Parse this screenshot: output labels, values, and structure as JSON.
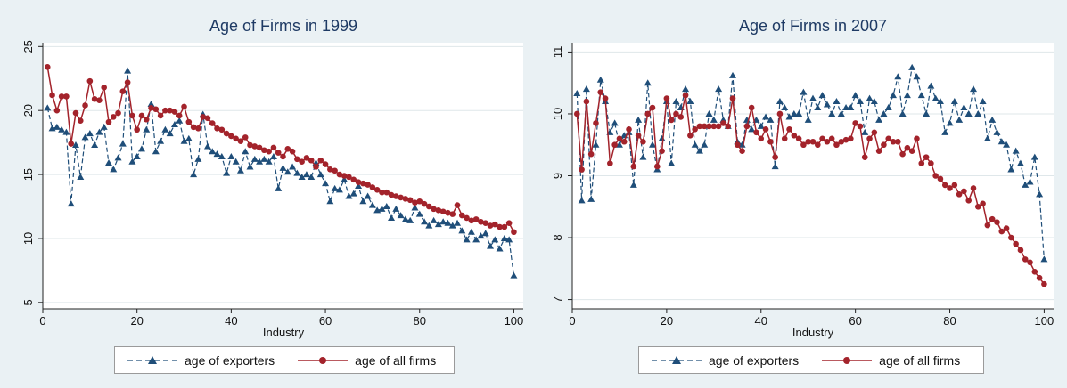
{
  "colors": {
    "background": "#eaf1f4",
    "plot_bg": "#ffffff",
    "grid": "#dfe7ea",
    "exporters": "#1f4e79",
    "all_firms": "#a3232b"
  },
  "chart_data": [
    {
      "type": "line",
      "title": "Age of Firms in 1999",
      "xlabel": "Industry",
      "ylabel": "",
      "xlim": [
        0,
        102
      ],
      "ylim": [
        4.5,
        25.3
      ],
      "xticks": [
        0,
        20,
        40,
        60,
        80,
        100
      ],
      "yticks": [
        5,
        10,
        15,
        20,
        25
      ],
      "grid": true,
      "legend_position": "bottom",
      "x": [
        1,
        2,
        3,
        4,
        5,
        6,
        7,
        8,
        9,
        10,
        11,
        12,
        13,
        14,
        15,
        16,
        17,
        18,
        19,
        20,
        21,
        22,
        23,
        24,
        25,
        26,
        27,
        28,
        29,
        30,
        31,
        32,
        33,
        34,
        35,
        36,
        37,
        38,
        39,
        40,
        41,
        42,
        43,
        44,
        45,
        46,
        47,
        48,
        49,
        50,
        51,
        52,
        53,
        54,
        55,
        56,
        57,
        58,
        59,
        60,
        61,
        62,
        63,
        64,
        65,
        66,
        67,
        68,
        69,
        70,
        71,
        72,
        73,
        74,
        75,
        76,
        77,
        78,
        79,
        80,
        81,
        82,
        83,
        84,
        85,
        86,
        87,
        88,
        89,
        90,
        91,
        92,
        93,
        94,
        95,
        96,
        97,
        98,
        99,
        100
      ],
      "series": [
        {
          "name": "age of exporters",
          "style": "dashed-triangle",
          "values": [
            20.2,
            18.6,
            18.7,
            18.5,
            18.3,
            12.7,
            17.3,
            14.8,
            17.9,
            18.2,
            17.3,
            18.3,
            18.7,
            15.9,
            15.4,
            16.3,
            17.4,
            23.1,
            16.0,
            16.4,
            17.0,
            18.5,
            20.5,
            16.8,
            17.6,
            18.5,
            18.2,
            18.9,
            19.2,
            17.6,
            17.8,
            15.0,
            16.2,
            19.7,
            17.2,
            16.8,
            16.6,
            16.4,
            15.1,
            16.4,
            16.0,
            15.3,
            16.8,
            15.6,
            16.2,
            16.0,
            16.2,
            16.0,
            16.4,
            13.9,
            15.5,
            15.2,
            15.6,
            15.1,
            14.8,
            15.0,
            14.8,
            15.9,
            15.0,
            14.3,
            12.9,
            13.9,
            13.8,
            14.6,
            13.3,
            13.5,
            14.1,
            12.9,
            13.3,
            12.6,
            12.2,
            12.3,
            12.5,
            11.6,
            12.3,
            11.8,
            11.5,
            11.4,
            12.4,
            11.9,
            11.3,
            11.0,
            11.4,
            11.1,
            11.3,
            11.2,
            11.0,
            11.2,
            10.6,
            9.9,
            10.5,
            9.9,
            10.2,
            10.4,
            9.4,
            9.9,
            9.2,
            10.0,
            9.9,
            7.1
          ]
        },
        {
          "name": "age of all firms",
          "style": "solid-circle",
          "values": [
            23.4,
            21.2,
            20.0,
            21.1,
            21.1,
            17.4,
            19.8,
            19.2,
            20.4,
            22.3,
            20.9,
            20.8,
            21.8,
            19.1,
            19.5,
            19.8,
            21.5,
            22.2,
            19.6,
            18.5,
            19.6,
            19.3,
            20.2,
            20.1,
            19.6,
            20.0,
            20.0,
            19.9,
            19.6,
            20.3,
            19.1,
            18.7,
            18.6,
            19.5,
            19.4,
            19.0,
            18.6,
            18.5,
            18.2,
            18.0,
            17.8,
            17.6,
            17.9,
            17.3,
            17.2,
            17.1,
            16.9,
            16.8,
            17.1,
            16.7,
            16.4,
            17.0,
            16.8,
            16.2,
            16.0,
            16.3,
            16.1,
            15.6,
            16.1,
            15.8,
            15.4,
            15.3,
            15.0,
            14.9,
            14.8,
            14.6,
            14.4,
            14.3,
            14.2,
            14.0,
            13.8,
            13.6,
            13.6,
            13.4,
            13.3,
            13.2,
            13.1,
            13.0,
            12.8,
            12.9,
            12.7,
            12.5,
            12.3,
            12.2,
            12.1,
            12.0,
            11.9,
            12.6,
            11.8,
            11.6,
            11.4,
            11.5,
            11.3,
            11.2,
            11.0,
            11.1,
            10.9,
            10.9,
            11.2,
            10.5
          ]
        }
      ]
    },
    {
      "type": "line",
      "title": "Age of Firms in 2007",
      "xlabel": "Industry",
      "ylabel": "",
      "xlim": [
        0,
        102
      ],
      "ylim": [
        6.85,
        11.15
      ],
      "xticks": [
        0,
        20,
        40,
        60,
        80,
        100
      ],
      "yticks": [
        7,
        8,
        9,
        10,
        11
      ],
      "grid": true,
      "legend_position": "bottom",
      "x": [
        1,
        2,
        3,
        4,
        5,
        6,
        7,
        8,
        9,
        10,
        11,
        12,
        13,
        14,
        15,
        16,
        17,
        18,
        19,
        20,
        21,
        22,
        23,
        24,
        25,
        26,
        27,
        28,
        29,
        30,
        31,
        32,
        33,
        34,
        35,
        36,
        37,
        38,
        39,
        40,
        41,
        42,
        43,
        44,
        45,
        46,
        47,
        48,
        49,
        50,
        51,
        52,
        53,
        54,
        55,
        56,
        57,
        58,
        59,
        60,
        61,
        62,
        63,
        64,
        65,
        66,
        67,
        68,
        69,
        70,
        71,
        72,
        73,
        74,
        75,
        76,
        77,
        78,
        79,
        80,
        81,
        82,
        83,
        84,
        85,
        86,
        87,
        88,
        89,
        90,
        91,
        92,
        93,
        94,
        95,
        96,
        97,
        98,
        99,
        100
      ],
      "series": [
        {
          "name": "age of exporters",
          "style": "dashed-triangle",
          "values": [
            10.33,
            8.6,
            10.4,
            8.62,
            9.5,
            10.55,
            10.2,
            9.7,
            9.85,
            9.5,
            9.65,
            9.7,
            8.85,
            9.9,
            9.3,
            10.5,
            9.5,
            9.1,
            9.6,
            10.2,
            9.2,
            10.2,
            10.1,
            10.4,
            10.2,
            9.5,
            9.4,
            9.5,
            10.0,
            9.9,
            10.4,
            9.9,
            9.8,
            10.62,
            9.55,
            9.5,
            9.9,
            9.75,
            9.9,
            9.8,
            9.95,
            9.9,
            9.15,
            10.2,
            10.1,
            9.95,
            10.0,
            10.0,
            10.35,
            9.9,
            10.25,
            10.1,
            10.3,
            10.15,
            10.0,
            10.2,
            10.0,
            10.1,
            10.1,
            10.3,
            10.2,
            9.7,
            10.25,
            10.2,
            9.9,
            10.0,
            10.1,
            10.3,
            10.6,
            10.0,
            10.3,
            10.75,
            10.6,
            10.3,
            10.0,
            10.45,
            10.25,
            10.2,
            9.7,
            9.85,
            10.2,
            9.9,
            10.1,
            10.0,
            10.4,
            10.0,
            10.2,
            9.6,
            9.9,
            9.7,
            9.55,
            9.5,
            9.1,
            9.4,
            9.2,
            8.85,
            8.9,
            9.3,
            8.7,
            7.65
          ]
        },
        {
          "name": "age of all firms",
          "style": "solid-circle",
          "values": [
            10.0,
            9.1,
            10.2,
            9.35,
            9.85,
            10.35,
            10.25,
            9.2,
            9.5,
            9.6,
            9.55,
            9.75,
            9.15,
            9.65,
            9.55,
            10.0,
            10.1,
            9.15,
            9.4,
            10.25,
            9.9,
            10.0,
            9.95,
            10.3,
            9.65,
            9.75,
            9.8,
            9.8,
            9.8,
            9.8,
            9.8,
            9.85,
            9.8,
            10.25,
            9.5,
            9.4,
            9.8,
            10.1,
            9.7,
            9.6,
            9.75,
            9.55,
            9.3,
            10.0,
            9.6,
            9.75,
            9.65,
            9.6,
            9.5,
            9.55,
            9.55,
            9.5,
            9.6,
            9.55,
            9.6,
            9.5,
            9.55,
            9.58,
            9.6,
            9.85,
            9.8,
            9.3,
            9.6,
            9.7,
            9.4,
            9.5,
            9.6,
            9.55,
            9.55,
            9.35,
            9.45,
            9.4,
            9.6,
            9.2,
            9.3,
            9.2,
            9.0,
            8.95,
            8.85,
            8.8,
            8.85,
            8.7,
            8.75,
            8.6,
            8.8,
            8.5,
            8.55,
            8.2,
            8.3,
            8.25,
            8.1,
            8.15,
            8.0,
            7.9,
            7.8,
            7.65,
            7.6,
            7.45,
            7.35,
            7.25
          ]
        }
      ]
    }
  ]
}
